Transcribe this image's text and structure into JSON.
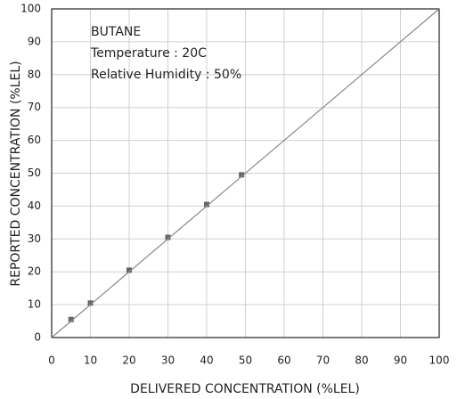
{
  "chart_data": {
    "type": "scatter",
    "xlabel": "DELIVERED CONCENTRATION (%LEL)",
    "ylabel": "REPORTED CONCENTRATION (%LEL)",
    "annotations": [
      "BUTANE",
      "Temperature : 20C",
      "Relative Humidity : 50%"
    ],
    "series": [
      {
        "type": "scatter",
        "color": "#666666",
        "x": [
          5,
          10,
          20,
          30,
          40,
          49
        ],
        "values": [
          5.5,
          10.5,
          20.5,
          30.5,
          40.5,
          49.5
        ]
      },
      {
        "type": "line",
        "color": "#888888",
        "x": [
          0,
          100
        ],
        "values": [
          0,
          100
        ]
      }
    ],
    "xlim": [
      0,
      100
    ],
    "ylim": [
      0,
      100
    ],
    "xticks": [
      0,
      10,
      20,
      30,
      40,
      50,
      60,
      70,
      80,
      90,
      100
    ],
    "yticks": [
      0,
      10,
      20,
      30,
      40,
      50,
      60,
      70,
      80,
      90,
      100
    ],
    "grid": true
  }
}
